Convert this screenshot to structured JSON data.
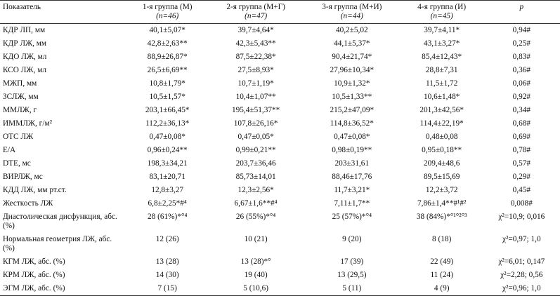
{
  "table": {
    "header": [
      [
        "Показатель"
      ],
      [
        "1-я группа (М)",
        "(n=46)"
      ],
      [
        "2-я группа (М+Г)",
        "(n=47)"
      ],
      [
        "3-я группа (М+И)",
        "(n=44)"
      ],
      [
        "4-я группа (И)",
        "(n=45)"
      ],
      [
        "p"
      ]
    ],
    "rows": [
      [
        "КДР ЛП, мм",
        "40,1±5,07*",
        "39,7±4,64*",
        "40,2±5,02",
        "39,7±4,11*",
        "0,94#"
      ],
      [
        "КДР ЛЖ, мм",
        "42,8±2,63**",
        "42,3±5,43**",
        "44,1±5,37*",
        "43,1±3,27*",
        "0,25#"
      ],
      [
        "КДО ЛЖ, мл",
        "88,9±26,87*",
        "87,5±22,38*",
        "90,4±21,74*",
        "85,4±12,43*",
        "0,83#"
      ],
      [
        "КСО ЛЖ, мл",
        "26,5±6,69**",
        "27,5±8,93*",
        "27,96±10,34*",
        "28,8±7,31",
        "0,36#"
      ],
      [
        "МЖП, мм",
        "10,8±1,79*",
        "10,7±1,19*",
        "10,9±1,32*",
        "11,5±1,72",
        "0,06#"
      ],
      [
        "ЗСЛЖ, мм",
        "10,5±1,57*",
        "10,4±1,07**",
        "10,5±1,33**",
        "10,6±1,48*",
        "0,92#"
      ],
      [
        "ММЛЖ, г",
        "203,1±66,45*",
        "195,4±51,37**",
        "215,2±47,09*",
        "201,3±42,56*",
        "0,34#"
      ],
      [
        "ИММЛЖ, г/м²",
        "112,2±36,13*",
        "107,8±26,16*",
        "114,8±36,52*",
        "114,4±22,19*",
        "0,68#"
      ],
      [
        "ОТС ЛЖ",
        "0,47±0,08*",
        "0,47±0,05*",
        "0,47±0,08*",
        "0,48±0,08",
        "0,69#"
      ],
      [
        "Е/А",
        "0,96±0,24**",
        "0,99±0,21**",
        "0,98±0,19**",
        "0,95±0,18**",
        "0,78#"
      ],
      [
        "DTE, мс",
        "198,3±34,21",
        "203,7±36,46",
        "203±31,61",
        "209,4±48,6",
        "0,57#"
      ],
      [
        "ВИРЛЖ, мс",
        "83,1±20,71",
        "85,73±14,01",
        "88,46±17,76",
        "89,5±15,69",
        "0,29#"
      ],
      [
        "КДД ЛЖ, мм рт.ст.",
        "12,8±3,27",
        "12,3±2,56*",
        "11,7±3,21*",
        "12,2±3,72",
        "0,45#"
      ],
      [
        "Жесткость ЛЖ",
        "6,8±2,25*#⁴",
        "6,67±1,6**#⁴",
        "7,11±1,7**",
        "7,86±1,4**#¹#²",
        "0,008#"
      ],
      [
        "Диастолическая дисфункция, абс. (%)",
        "28 (61%)*°⁴",
        "26 (55%)*°⁴",
        "25 (57%)*°⁴",
        "38 (84%)*°¹°²°³",
        "χ²=10,9; 0,016"
      ],
      [
        "Нормальная геометрия ЛЖ, абс. (%)",
        "12 (26)",
        "10 (21)",
        "9 (20)",
        "8 (18)",
        "χ²=0,97; 1,0"
      ],
      [
        "КГМ ЛЖ, абс. (%)",
        "13 (28)",
        "13 (28)*°",
        "17 (39)",
        "22 (49)",
        "χ²=6,01; 0,147"
      ],
      [
        "КРМ ЛЖ, абс. (%)",
        "14 (30)",
        "19 (40)",
        "13 (29,5)",
        "11 (24)",
        "χ²=2,28; 0,56"
      ],
      [
        "ЭГМ ЛЖ, абс. (%)",
        "7 (15)",
        "5 (10,6)",
        "5 (11)",
        "4 (9)",
        "χ²=0,96; 1,0"
      ]
    ]
  }
}
